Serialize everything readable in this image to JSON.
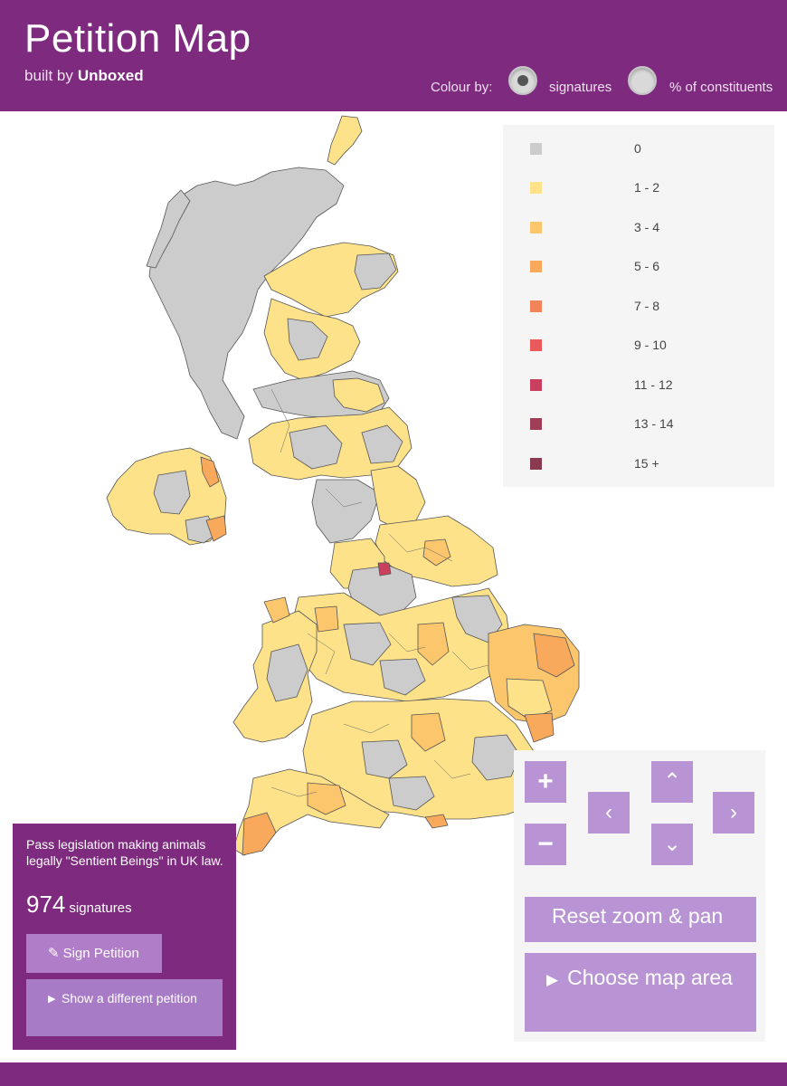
{
  "header": {
    "title": "Petition Map",
    "built_by_prefix": "built by",
    "built_by_brand": "Unboxed",
    "colour_by_label": "Colour by:",
    "options": [
      {
        "label": "signatures",
        "selected": true
      },
      {
        "label": "% of constituents",
        "selected": false
      }
    ]
  },
  "legend": [
    {
      "label": "0",
      "color": "#cccccc"
    },
    {
      "label": "1 - 2",
      "color": "#fde28a"
    },
    {
      "label": "3 - 4",
      "color": "#fbc66c"
    },
    {
      "label": "5 - 6",
      "color": "#f8a95b"
    },
    {
      "label": "7 - 8",
      "color": "#f3845a"
    },
    {
      "label": "9 - 10",
      "color": "#ea5a5a"
    },
    {
      "label": "11 - 12",
      "color": "#c9405e"
    },
    {
      "label": "13 - 14",
      "color": "#a13e57"
    },
    {
      "label": "15 +",
      "color": "#8a3a4e"
    }
  ],
  "petition": {
    "title": "Pass legislation making animals legally \"Sentient Beings\" in UK law.",
    "signature_count": "974",
    "signature_label": "signatures",
    "sign_button": "Sign Petition",
    "different_button": "Show a different petition"
  },
  "controls": {
    "zoom_in_icon": "plus-icon",
    "zoom_out_icon": "minus-icon",
    "reset_label": "Reset zoom & pan",
    "choose_area_label": "Choose map area"
  },
  "colors": {
    "brand_purple": "#7e2a7e",
    "button_lilac": "#b894d4",
    "map_grey": "#cccccc"
  }
}
